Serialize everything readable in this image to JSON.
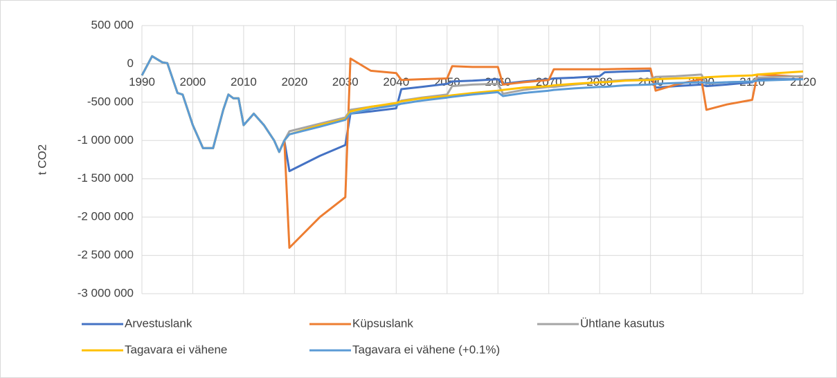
{
  "chart_data": {
    "type": "line",
    "y_label": "t CO2",
    "xlim": [
      1990,
      2120
    ],
    "xticks": [
      1990,
      2000,
      2010,
      2020,
      2030,
      2040,
      2050,
      2060,
      2070,
      2080,
      2090,
      2100,
      2110,
      2120
    ],
    "ylim": [
      -3000000,
      500000
    ],
    "yticks": [
      {
        "value": 500000,
        "label": "500 000"
      },
      0,
      {
        "value": -500000,
        "label": "-500 000"
      },
      {
        "value": -1000000,
        "label": "-1 000 000"
      },
      {
        "value": -1500000,
        "label": "-1 500 000"
      },
      {
        "value": -2000000,
        "label": "-2 000 000"
      },
      {
        "value": -2500000,
        "label": "-2 500 000"
      },
      {
        "value": -3000000,
        "label": "-3 000 000"
      }
    ],
    "grid": true,
    "legend": "bottom",
    "x": [
      1990,
      1992,
      1994,
      1995,
      1997,
      1998,
      2000,
      2002,
      2004,
      2006,
      2007,
      2008,
      2009,
      2010,
      2012,
      2014,
      2016,
      2017,
      2018,
      2019,
      2025,
      2030,
      2031,
      2035,
      2040,
      2041,
      2045,
      2050,
      2051,
      2055,
      2060,
      2061,
      2065,
      2070,
      2071,
      2075,
      2080,
      2081,
      2085,
      2090,
      2091,
      2095,
      2100,
      2101,
      2105,
      2110,
      2111,
      2115,
      2120
    ],
    "series": [
      {
        "name": "Arvestuslank",
        "color": "#4472c4",
        "values": [
          -150000,
          100000,
          20000,
          10000,
          -380000,
          -400000,
          -800000,
          -1100000,
          -1100000,
          -600000,
          -400000,
          -450000,
          -450000,
          -800000,
          -650000,
          -800000,
          -1000000,
          -1150000,
          -1000000,
          -1400000,
          -1200000,
          -1060000,
          -650000,
          -620000,
          -580000,
          -330000,
          -300000,
          -260000,
          -230000,
          -220000,
          -200000,
          -260000,
          -230000,
          -200000,
          -190000,
          -180000,
          -160000,
          -110000,
          -100000,
          -90000,
          -310000,
          -290000,
          -270000,
          -290000,
          -270000,
          -240000,
          -200000,
          -200000,
          -200000
        ]
      },
      {
        "name": "Küpsuslank",
        "color": "#ed7d31",
        "values": [
          -150000,
          100000,
          20000,
          10000,
          -380000,
          -400000,
          -800000,
          -1100000,
          -1100000,
          -600000,
          -400000,
          -450000,
          -450000,
          -800000,
          -650000,
          -800000,
          -1000000,
          -1150000,
          -1000000,
          -2400000,
          -2000000,
          -1740000,
          70000,
          -90000,
          -120000,
          -210000,
          -200000,
          -190000,
          -30000,
          -40000,
          -40000,
          -270000,
          -240000,
          -210000,
          -70000,
          -70000,
          -70000,
          -70000,
          -65000,
          -60000,
          -350000,
          -270000,
          -200000,
          -600000,
          -530000,
          -470000,
          -140000,
          -150000,
          -170000
        ]
      },
      {
        "name": "Ühtlane kasutus",
        "color": "#a5a5a5",
        "values": [
          -150000,
          100000,
          20000,
          10000,
          -380000,
          -400000,
          -800000,
          -1100000,
          -1100000,
          -600000,
          -400000,
          -450000,
          -450000,
          -800000,
          -650000,
          -800000,
          -1000000,
          -1150000,
          -1000000,
          -880000,
          -780000,
          -700000,
          -600000,
          -560000,
          -520000,
          -480000,
          -440000,
          -400000,
          -290000,
          -270000,
          -260000,
          -390000,
          -340000,
          -300000,
          -300000,
          -270000,
          -240000,
          -230000,
          -210000,
          -200000,
          -170000,
          -160000,
          -140000,
          -260000,
          -240000,
          -230000,
          -180000,
          -170000,
          -160000
        ]
      },
      {
        "name": "Tagavara ei vähene",
        "color": "#ffc000",
        "values": [
          -150000,
          100000,
          20000,
          10000,
          -380000,
          -400000,
          -800000,
          -1100000,
          -1100000,
          -600000,
          -400000,
          -450000,
          -450000,
          -800000,
          -650000,
          -800000,
          -1000000,
          -1150000,
          -1000000,
          -920000,
          -800000,
          -720000,
          -620000,
          -560000,
          -510000,
          -490000,
          -450000,
          -420000,
          -410000,
          -380000,
          -350000,
          -340000,
          -310000,
          -290000,
          -280000,
          -260000,
          -240000,
          -240000,
          -220000,
          -210000,
          -200000,
          -190000,
          -180000,
          -175000,
          -160000,
          -150000,
          -140000,
          -120000,
          -100000
        ]
      },
      {
        "name": "Tagavara ei vähene (+0.1%)",
        "color": "#5b9bd5",
        "values": [
          -150000,
          100000,
          20000,
          10000,
          -380000,
          -400000,
          -800000,
          -1100000,
          -1100000,
          -600000,
          -400000,
          -450000,
          -450000,
          -800000,
          -650000,
          -800000,
          -1000000,
          -1150000,
          -1000000,
          -920000,
          -820000,
          -730000,
          -650000,
          -590000,
          -540000,
          -520000,
          -480000,
          -440000,
          -430000,
          -400000,
          -370000,
          -420000,
          -380000,
          -350000,
          -340000,
          -320000,
          -300000,
          -300000,
          -280000,
          -270000,
          -260000,
          -250000,
          -240000,
          -250000,
          -240000,
          -230000,
          -220000,
          -210000,
          -200000
        ]
      }
    ]
  }
}
